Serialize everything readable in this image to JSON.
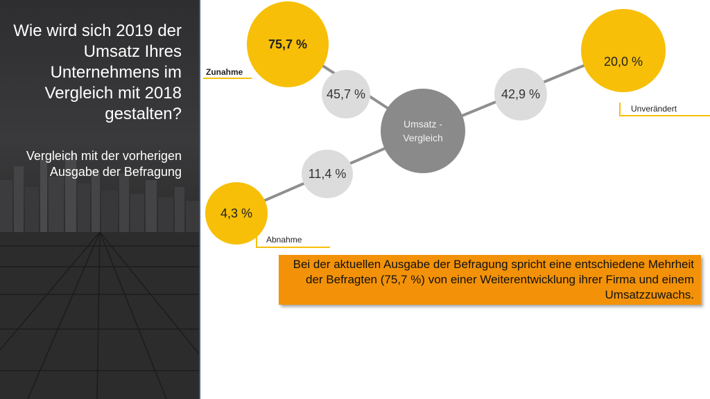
{
  "sidebar": {
    "title": "Wie wird sich 2019 der Umsatz Ihres Unternehmens im Vergleich mit 2018 gestalten?",
    "subtitle": "Vergleich mit der vorherigen Ausgabe der Befragung"
  },
  "diagram": {
    "center": {
      "label": "Umsatz - Vergleich"
    },
    "increase": {
      "label": "Zunahme",
      "current": "75,7 %",
      "previous": "45,7 %"
    },
    "unchanged": {
      "label": "Unverändert",
      "current": "20,0 %",
      "previous": "42,9 %"
    },
    "decrease": {
      "label": "Abnahme",
      "current": "4,3 %",
      "previous": "11,4 %"
    }
  },
  "note": {
    "text": "Bei der aktuellen Ausgabe der Befragung spricht eine entschiedene Mehrheit der Befragten (75,7 %) von einer Weiterentwicklung ihrer Firma und einem Umsatzzuwachs."
  },
  "colors": {
    "accent_yellow": "#f7bf07",
    "note_orange": "#f39208",
    "previous_gray": "#dcdcdc",
    "center_gray": "#8a8a8a",
    "panel_border": "#3b5a8a"
  }
}
